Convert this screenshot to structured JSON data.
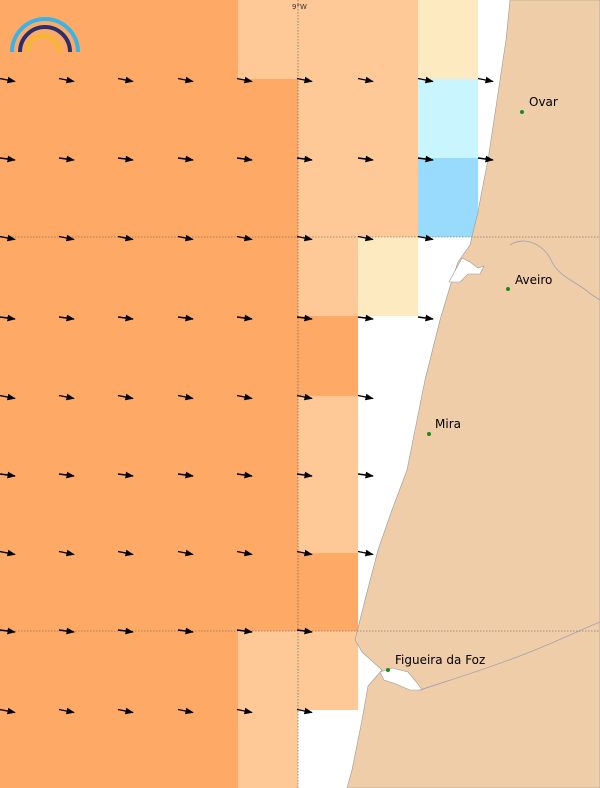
{
  "map": {
    "longitude_label": "9°W",
    "colors": {
      "ocean_dark": "#fea965",
      "ocean_light": "#fec997",
      "ocean_pale": "#feeac0",
      "cyan_light": "#c9f6fe",
      "cyan": "#98dbfd",
      "land": "#efcda8",
      "coast_line": "#999999",
      "place_dot": "#1a8a1a",
      "logo_blue": "#3ab4e6",
      "logo_navy": "#2a2f6e",
      "logo_yellow": "#f5b731"
    },
    "places": [
      {
        "id": "ovar",
        "name": "Ovar"
      },
      {
        "id": "aveiro",
        "name": "Aveiro"
      },
      {
        "id": "mira",
        "name": "Mira"
      },
      {
        "id": "figueira",
        "name": "Figueira da Foz"
      }
    ],
    "logo_icon": "rainbow-arcs-logo",
    "arrow_icon": "wind-arrow-icon"
  }
}
